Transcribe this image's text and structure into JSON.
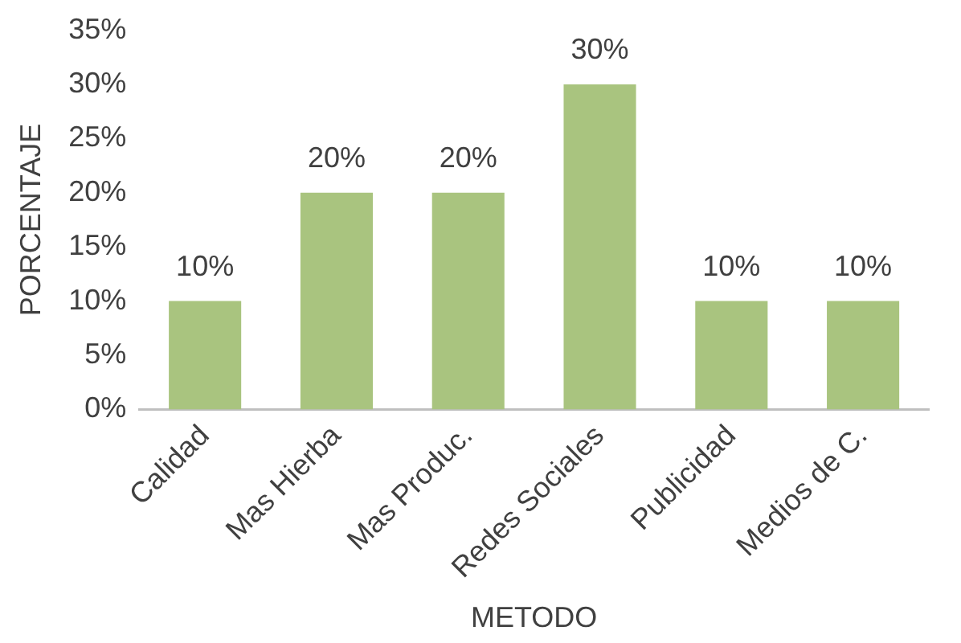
{
  "chart_data": {
    "type": "bar",
    "xlabel": "METODO",
    "ylabel": "PORCENTAJE",
    "categories": [
      "Calidad",
      "Mas Hierba",
      "Mas Produc.",
      "Redes Sociales",
      "Publicidad",
      "Medios de C."
    ],
    "values": [
      10,
      20,
      20,
      30,
      10,
      10
    ],
    "value_labels": [
      "10%",
      "20%",
      "20%",
      "30%",
      "10%",
      "10%"
    ],
    "color": "#a9c47f",
    "ylim": [
      0,
      35
    ],
    "yticks": [
      {
        "value": 0,
        "label": "0%"
      },
      {
        "value": 5,
        "label": "5%"
      },
      {
        "value": 10,
        "label": "10%"
      },
      {
        "value": 15,
        "label": "15%"
      },
      {
        "value": 20,
        "label": "20%"
      },
      {
        "value": 25,
        "label": "25%"
      },
      {
        "value": 30,
        "label": "30%"
      },
      {
        "value": 35,
        "label": "35%"
      }
    ],
    "grid": false,
    "legend": false
  }
}
